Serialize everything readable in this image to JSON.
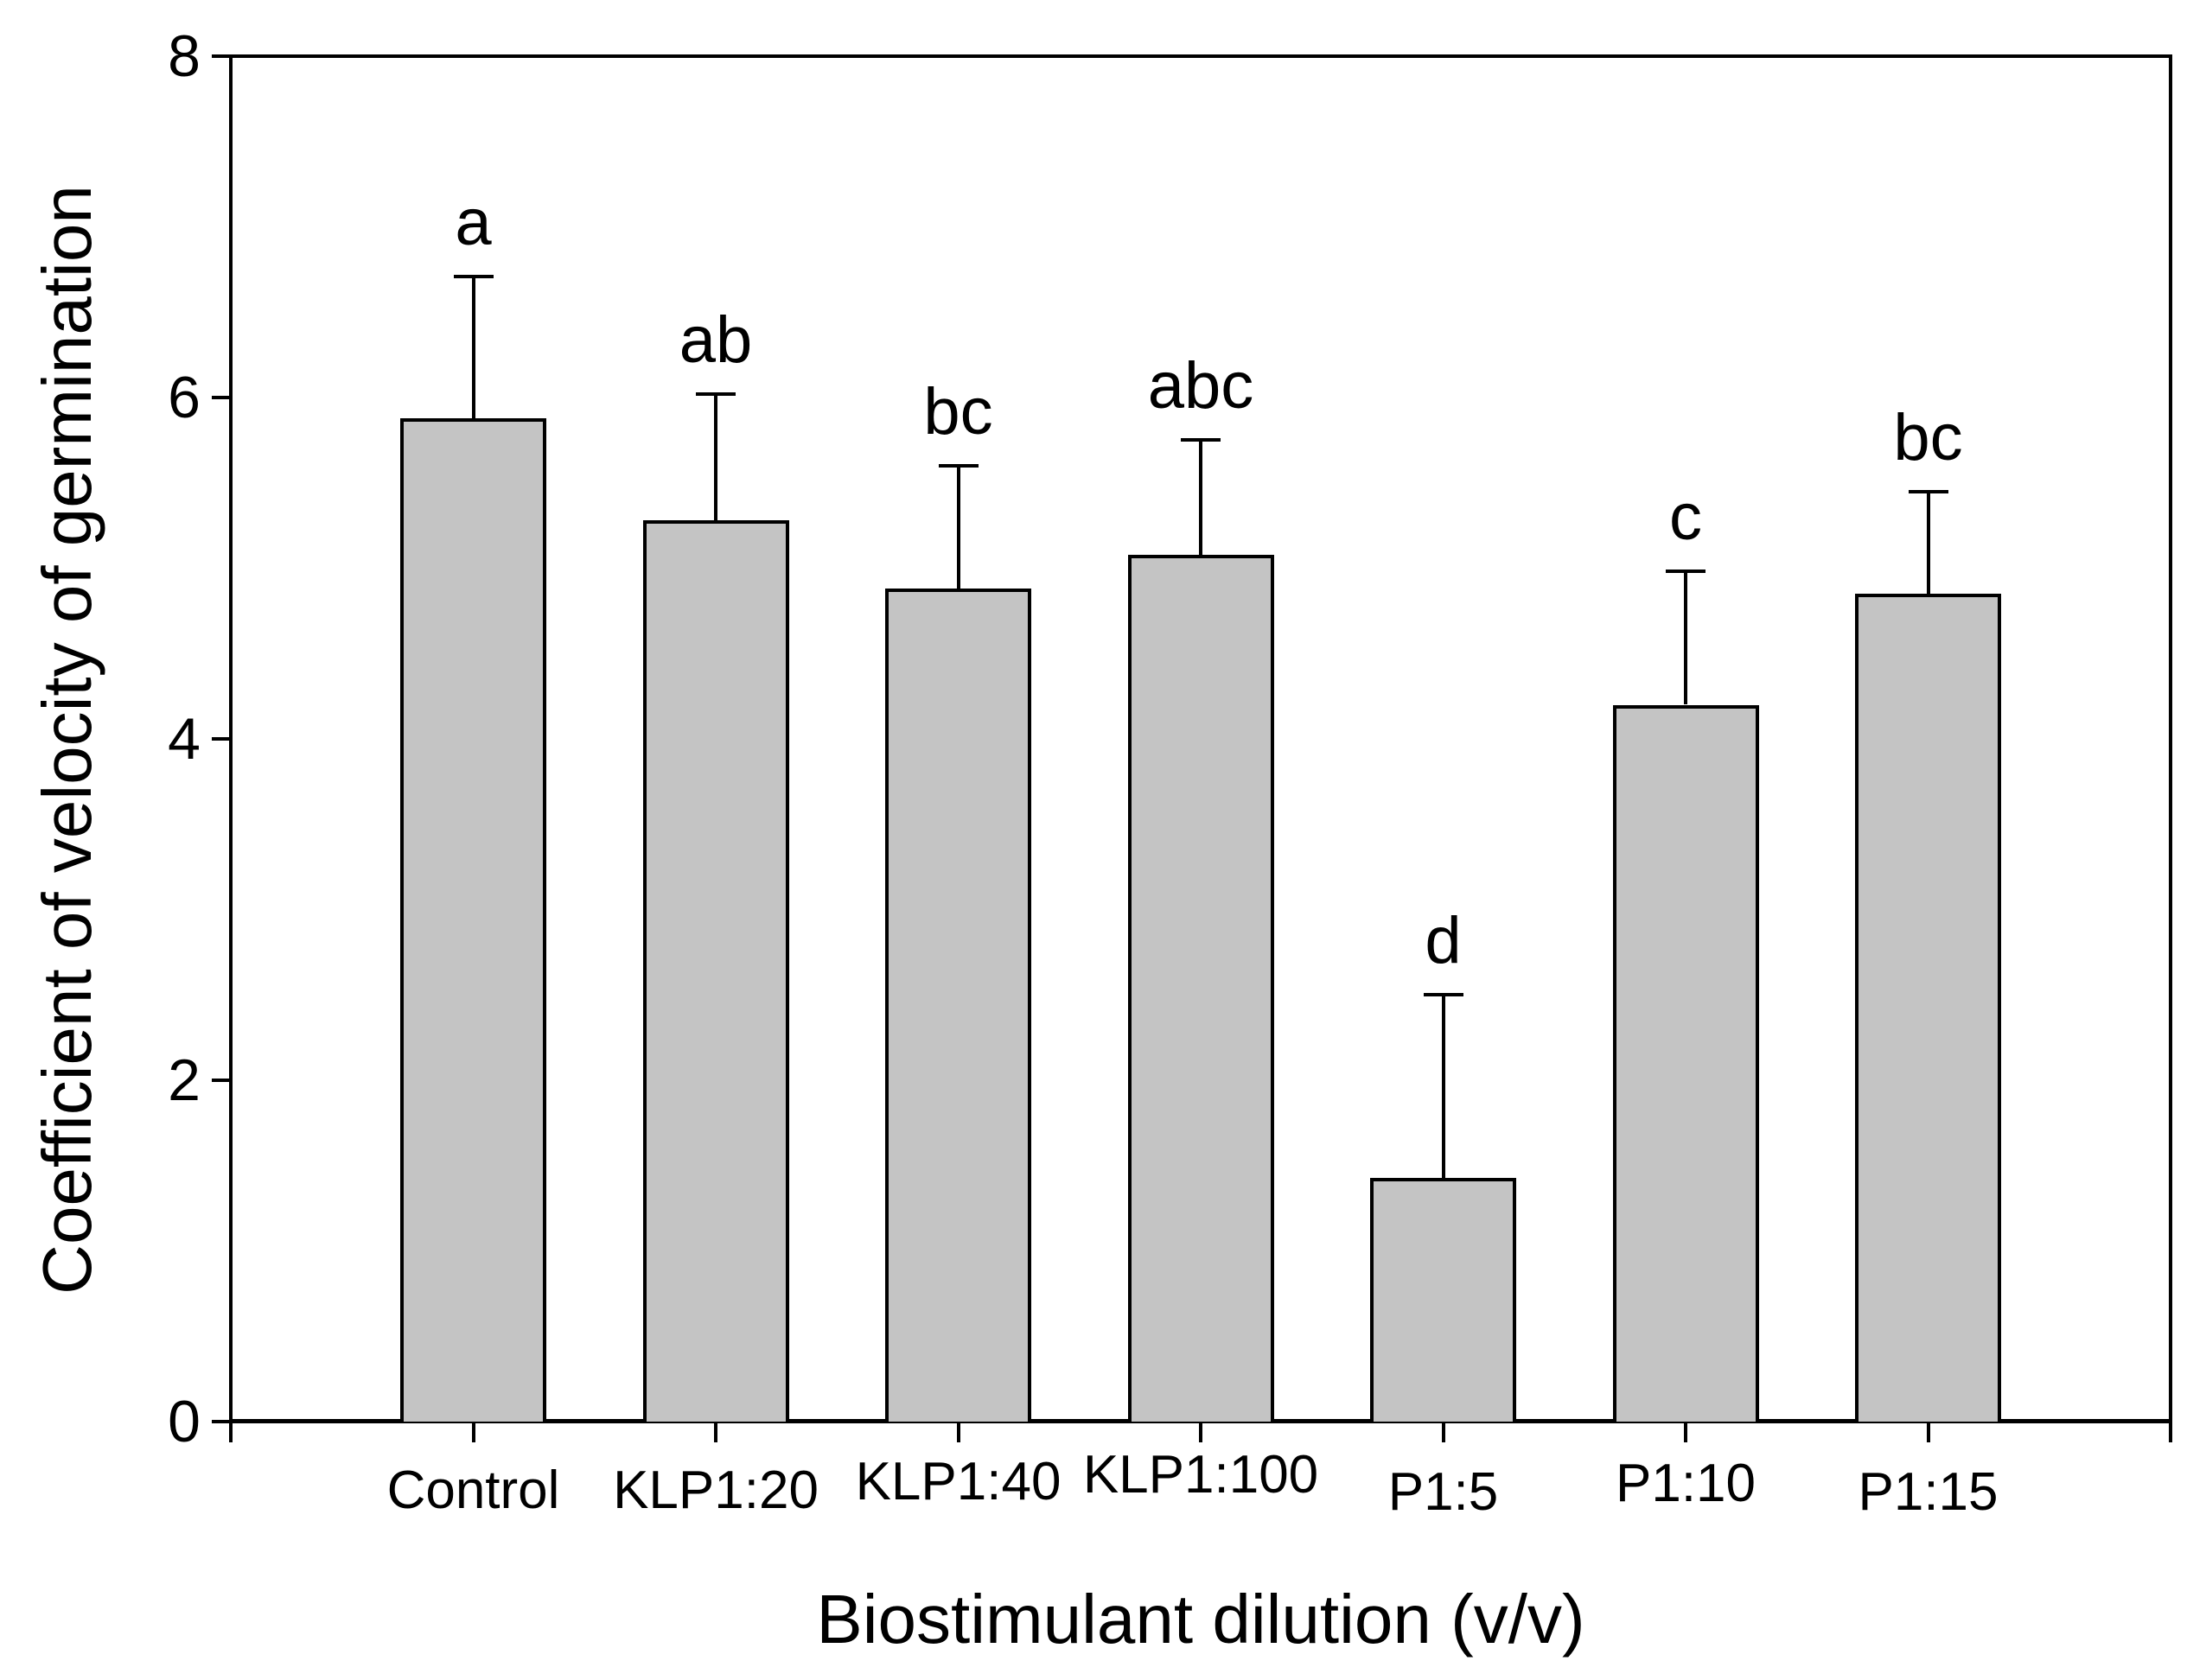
{
  "figure": {
    "background_color": "#ffffff",
    "text_color": "#000000"
  },
  "chart_data": {
    "type": "bar",
    "title": "",
    "xlabel": "Biostimulant dilution (v/v)",
    "ylabel": "Coefficient of velocity of germination",
    "categories": [
      "Control",
      "KLP1:20",
      "KLP1:40",
      "KLP1:100",
      "P1:5",
      "P1:10",
      "P1:15"
    ],
    "values": [
      5.88,
      5.28,
      4.88,
      5.08,
      1.43,
      4.2,
      4.85
    ],
    "error_plus": [
      0.84,
      0.75,
      0.73,
      0.68,
      1.08,
      0.79,
      0.61
    ],
    "sig_letters": [
      "a",
      "ab",
      "bc",
      "abc",
      "d",
      "c",
      "bc"
    ],
    "ylim": [
      0,
      8
    ],
    "yticks": [
      0,
      2,
      4,
      6,
      8
    ],
    "grid": false,
    "legend": null,
    "bar_fill": "#c4c4c4",
    "bar_border": "#000000",
    "axis_color": "#000000"
  }
}
